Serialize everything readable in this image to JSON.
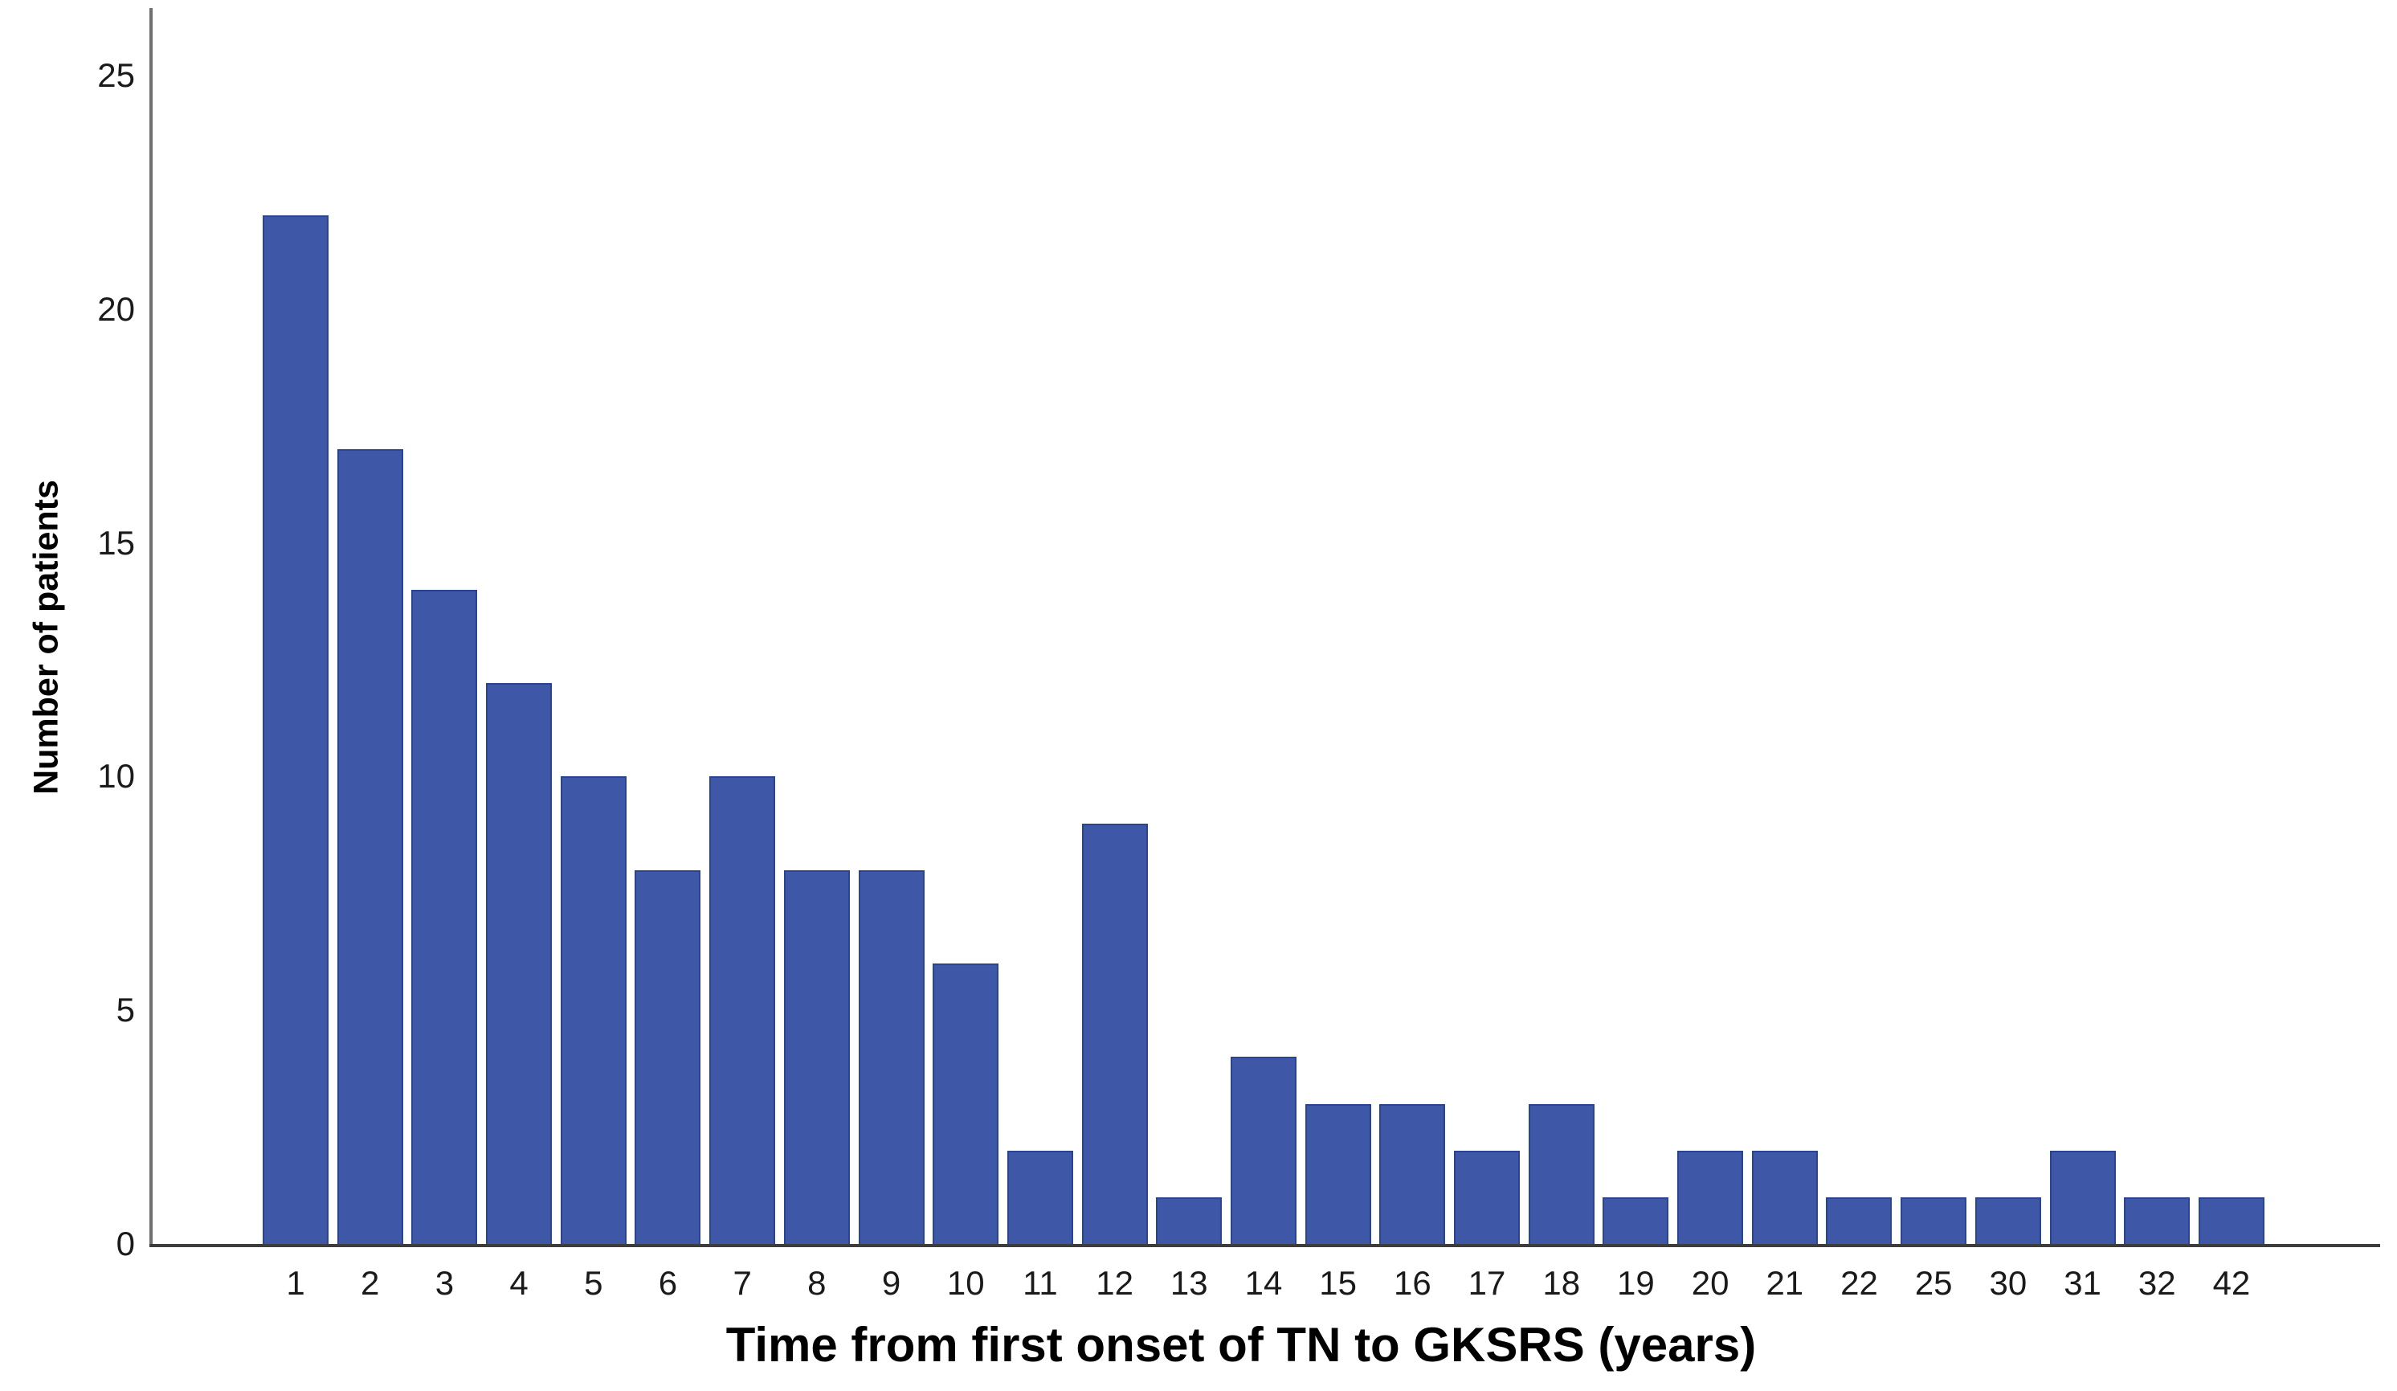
{
  "chart_data": {
    "type": "bar",
    "title": "",
    "xlabel": "Time from first onset of TN to GKSRS (years)",
    "ylabel": "Number of patients",
    "categories": [
      "1",
      "2",
      "3",
      "4",
      "5",
      "6",
      "7",
      "8",
      "9",
      "10",
      "11",
      "12",
      "13",
      "14",
      "15",
      "16",
      "17",
      "18",
      "19",
      "20",
      "21",
      "22",
      "25",
      "30",
      "31",
      "32",
      "42"
    ],
    "values": [
      22,
      17,
      14,
      12,
      10,
      8,
      10,
      8,
      8,
      6,
      2,
      9,
      1,
      4,
      3,
      3,
      2,
      3,
      1,
      2,
      2,
      1,
      1,
      1,
      2,
      1,
      1
    ],
    "yticks": [
      0,
      5,
      10,
      15,
      20,
      25
    ],
    "ylim": [
      0,
      26.5
    ],
    "grid": false,
    "legend": false,
    "colors": {
      "bar_fill": "#3E57A7",
      "bar_border": "#2A4494",
      "y_axis_line": "#707070",
      "x_axis_line": "#3D3D3D",
      "tick_text": "#1A1A1A",
      "title_text": "#000000",
      "background": "#FFFFFF"
    }
  }
}
